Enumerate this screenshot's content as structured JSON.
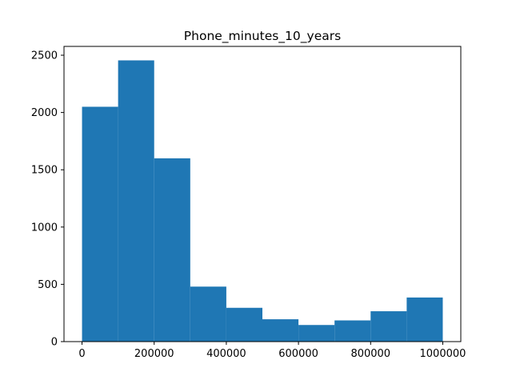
{
  "chart_data": {
    "type": "bar",
    "title": "Phone_minutes_10_years",
    "xlabel": "",
    "ylabel": "",
    "bar_color": "#1f77b4",
    "bins": [
      {
        "x0": 0,
        "x1": 100000,
        "count": 2050
      },
      {
        "x0": 100000,
        "x1": 200000,
        "count": 2455
      },
      {
        "x0": 200000,
        "x1": 300000,
        "count": 1600
      },
      {
        "x0": 300000,
        "x1": 400000,
        "count": 480
      },
      {
        "x0": 400000,
        "x1": 500000,
        "count": 295
      },
      {
        "x0": 500000,
        "x1": 600000,
        "count": 195
      },
      {
        "x0": 600000,
        "x1": 700000,
        "count": 145
      },
      {
        "x0": 700000,
        "x1": 800000,
        "count": 185
      },
      {
        "x0": 800000,
        "x1": 900000,
        "count": 265
      },
      {
        "x0": 900000,
        "x1": 1000000,
        "count": 385
      }
    ],
    "xlim": [
      -50000,
      1050000
    ],
    "ylim": [
      0,
      2577
    ],
    "xticks": [
      0,
      200000,
      400000,
      600000,
      800000,
      1000000
    ],
    "xtick_labels": [
      "0",
      "200000",
      "400000",
      "600000",
      "800000",
      "1000000"
    ],
    "yticks": [
      0,
      500,
      1000,
      1500,
      2000,
      2500
    ],
    "ytick_labels": [
      "0",
      "500",
      "1000",
      "1500",
      "2000",
      "2500"
    ],
    "grid": false,
    "legend": "none"
  }
}
